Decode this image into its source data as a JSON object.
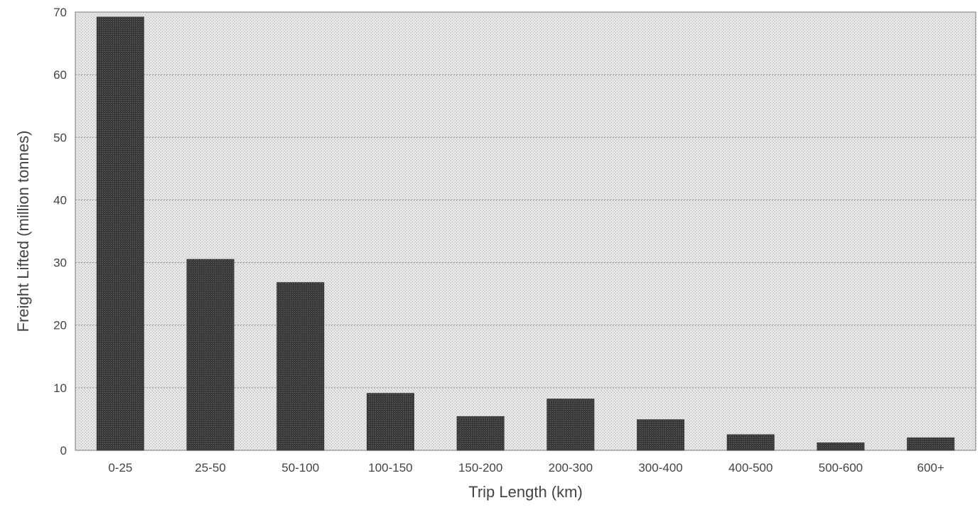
{
  "chart_data": {
    "type": "bar",
    "title": "",
    "xlabel": "Trip Length (km)",
    "ylabel": "Freight Lifted (million tonnes)",
    "categories": [
      "0-25",
      "25-50",
      "50-100",
      "100-150",
      "150-200",
      "200-300",
      "300-400",
      "400-500",
      "500-600",
      "600+"
    ],
    "values": [
      69.2,
      30.5,
      26.8,
      9.1,
      5.4,
      8.2,
      4.9,
      2.5,
      1.2,
      2.0
    ],
    "ylim": [
      0,
      70
    ],
    "yticks": [
      0,
      10,
      20,
      30,
      40,
      50,
      60,
      70
    ],
    "grid": true,
    "legend": "none",
    "colors": {
      "bar": "#3a3a3a",
      "plot_background": "#dcdcdc",
      "gridline": "#8a8a8a"
    }
  }
}
